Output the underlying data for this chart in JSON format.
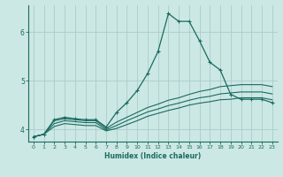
{
  "xlabel": "Humidex (Indice chaleur)",
  "background_color": "#cce8e4",
  "grid_color": "#aaccca",
  "line_color": "#1a6b60",
  "xlim": [
    -0.5,
    23.5
  ],
  "ylim": [
    3.75,
    6.55
  ],
  "yticks": [
    4,
    5,
    6
  ],
  "xticks": [
    0,
    1,
    2,
    3,
    4,
    5,
    6,
    7,
    8,
    9,
    10,
    11,
    12,
    13,
    14,
    15,
    16,
    17,
    18,
    19,
    20,
    21,
    22,
    23
  ],
  "lines": [
    {
      "x": [
        0,
        1,
        2,
        3,
        4,
        5,
        6,
        7,
        8,
        9,
        10,
        11,
        12,
        13,
        14,
        15,
        16,
        17,
        18,
        19,
        20,
        21,
        22,
        23
      ],
      "y": [
        3.85,
        3.9,
        4.2,
        4.25,
        4.22,
        4.2,
        4.2,
        4.05,
        4.35,
        4.55,
        4.8,
        5.15,
        5.6,
        6.38,
        6.22,
        6.22,
        5.82,
        5.38,
        5.22,
        4.72,
        4.62,
        4.62,
        4.62,
        4.55
      ],
      "marker": true
    },
    {
      "x": [
        0,
        1,
        2,
        3,
        4,
        5,
        6,
        7,
        8,
        9,
        10,
        11,
        12,
        13,
        14,
        15,
        16,
        17,
        18,
        19,
        20,
        21,
        22,
        23
      ],
      "y": [
        3.85,
        3.9,
        4.18,
        4.22,
        4.2,
        4.18,
        4.18,
        4.02,
        4.15,
        4.25,
        4.35,
        4.45,
        4.52,
        4.6,
        4.65,
        4.72,
        4.78,
        4.82,
        4.88,
        4.9,
        4.92,
        4.92,
        4.92,
        4.88
      ],
      "marker": false
    },
    {
      "x": [
        0,
        1,
        2,
        3,
        4,
        5,
        6,
        7,
        8,
        9,
        10,
        11,
        12,
        13,
        14,
        15,
        16,
        17,
        18,
        19,
        20,
        21,
        22,
        23
      ],
      "y": [
        3.85,
        3.9,
        4.12,
        4.18,
        4.16,
        4.14,
        4.14,
        3.99,
        4.08,
        4.18,
        4.27,
        4.36,
        4.42,
        4.49,
        4.54,
        4.6,
        4.65,
        4.68,
        4.73,
        4.75,
        4.77,
        4.77,
        4.77,
        4.73
      ],
      "marker": false
    },
    {
      "x": [
        0,
        1,
        2,
        3,
        4,
        5,
        6,
        7,
        8,
        9,
        10,
        11,
        12,
        13,
        14,
        15,
        16,
        17,
        18,
        19,
        20,
        21,
        22,
        23
      ],
      "y": [
        3.85,
        3.9,
        4.06,
        4.12,
        4.1,
        4.08,
        4.08,
        3.97,
        4.02,
        4.1,
        4.18,
        4.27,
        4.33,
        4.39,
        4.44,
        4.5,
        4.54,
        4.57,
        4.61,
        4.62,
        4.65,
        4.65,
        4.65,
        4.61
      ],
      "marker": false
    }
  ]
}
